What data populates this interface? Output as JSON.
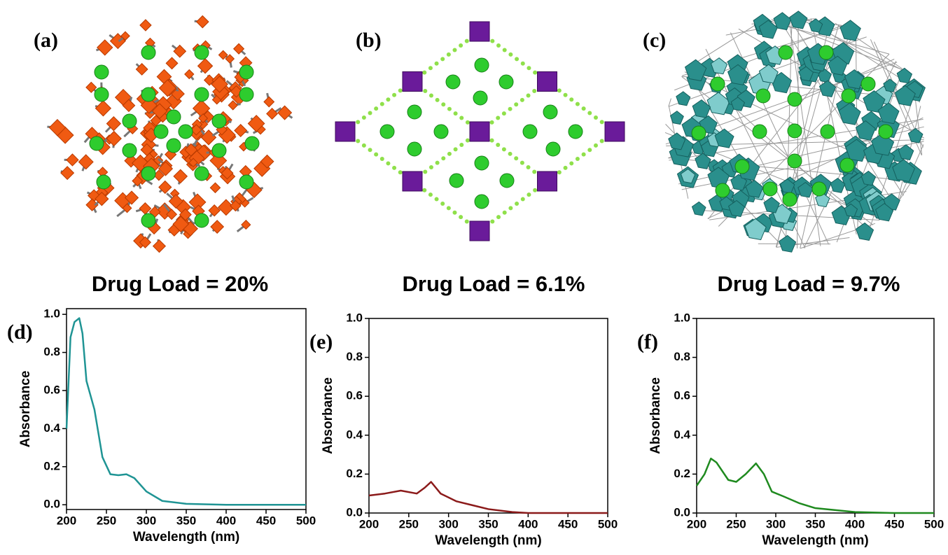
{
  "panels": [
    {
      "label": "(a)",
      "caption": "Drug Load = 20%"
    },
    {
      "label": "(b)",
      "caption": "Drug Load = 6.1%"
    },
    {
      "label": "(c)",
      "caption": "Drug Load = 9.7%"
    }
  ],
  "chart_data": [
    {
      "type": "line",
      "label": "(d)",
      "xlabel": "Wavelength (nm)",
      "ylabel": "Absorbance",
      "color": "#1f9494",
      "x": [
        200,
        205,
        210,
        216,
        220,
        225,
        235,
        245,
        255,
        265,
        275,
        285,
        300,
        320,
        350,
        400,
        500
      ],
      "values": [
        0.4,
        0.88,
        0.96,
        0.98,
        0.9,
        0.65,
        0.5,
        0.25,
        0.16,
        0.155,
        0.16,
        0.14,
        0.07,
        0.02,
        0.005,
        0,
        0
      ],
      "xlim": [
        200,
        500
      ],
      "ylim": [
        -0.025,
        1.03
      ],
      "xticks": [
        200,
        250,
        300,
        350,
        400,
        450,
        500
      ],
      "yticks": [
        {
          "value": 0,
          "label": "0.0"
        },
        0.2,
        0.4,
        0.6,
        0.8,
        {
          "value": 1,
          "label": "1.0"
        }
      ]
    },
    {
      "type": "line",
      "label": "(e)",
      "xlabel": "Wavelength (nm)",
      "ylabel": "Absorbance",
      "color": "#8b1a1a",
      "x": [
        200,
        220,
        240,
        260,
        270,
        278,
        290,
        310,
        330,
        350,
        380,
        400,
        500
      ],
      "values": [
        0.09,
        0.1,
        0.115,
        0.1,
        0.13,
        0.16,
        0.1,
        0.06,
        0.04,
        0.02,
        0.005,
        0,
        0
      ],
      "xlim": [
        200,
        500
      ],
      "ylim": [
        0,
        1
      ],
      "xticks": [
        200,
        250,
        300,
        350,
        400,
        450,
        500
      ],
      "yticks": [
        {
          "value": 0,
          "label": "0.0"
        },
        0.2,
        0.4,
        0.6,
        0.8,
        {
          "value": 1,
          "label": "1.0"
        }
      ]
    },
    {
      "type": "line",
      "label": "(f)",
      "xlabel": "Wavelength (nm)",
      "ylabel": "Absorbance",
      "color": "#1f8a1f",
      "x": [
        200,
        210,
        218,
        225,
        240,
        250,
        262,
        275,
        285,
        295,
        310,
        330,
        350,
        400,
        450,
        500
      ],
      "values": [
        0.14,
        0.2,
        0.28,
        0.26,
        0.17,
        0.16,
        0.2,
        0.255,
        0.2,
        0.11,
        0.085,
        0.05,
        0.025,
        0.005,
        0,
        0
      ],
      "xlim": [
        200,
        500
      ],
      "ylim": [
        0,
        1
      ],
      "xticks": [
        200,
        250,
        300,
        350,
        400,
        450,
        500
      ],
      "yticks": [
        {
          "value": 0,
          "label": "0.0"
        },
        0.2,
        0.4,
        0.6,
        0.8,
        {
          "value": 1,
          "label": "1.0"
        }
      ]
    }
  ]
}
